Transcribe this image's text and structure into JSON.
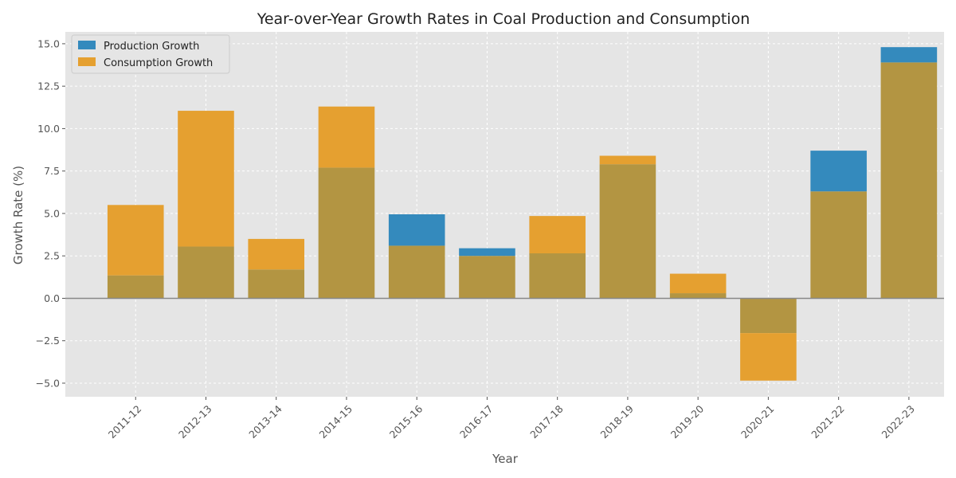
{
  "chart_data": {
    "type": "bar",
    "title": "Year-over-Year Growth Rates in Coal Production and Consumption",
    "xlabel": "Year",
    "ylabel": "Growth Rate (%)",
    "categories": [
      "2011-12",
      "2012-13",
      "2013-14",
      "2014-15",
      "2015-16",
      "2016-17",
      "2017-18",
      "2018-19",
      "2019-20",
      "2020-21",
      "2021-22",
      "2022-23"
    ],
    "series": [
      {
        "name": "Production Growth",
        "color": "#348ABD",
        "values": [
          1.35,
          3.05,
          1.7,
          7.7,
          4.95,
          2.95,
          2.65,
          7.9,
          0.3,
          -2.05,
          8.7,
          14.8
        ]
      },
      {
        "name": "Consumption Growth",
        "color": "#E5A030",
        "values": [
          5.5,
          11.05,
          3.5,
          11.3,
          3.1,
          2.5,
          4.85,
          8.4,
          1.45,
          -4.85,
          6.3,
          13.9
        ]
      }
    ],
    "ylim": [
      -5.8,
      15.7
    ],
    "yticks": [
      -5.0,
      -2.5,
      0.0,
      2.5,
      5.0,
      7.5,
      10.0,
      12.5,
      15.0
    ],
    "ytick_labels": [
      "−5.0",
      "−2.5",
      "0.0",
      "2.5",
      "5.0",
      "7.5",
      "10.0",
      "12.5",
      "15.0"
    ],
    "grid": true,
    "legend_position": "top-left",
    "overlap_color": "#B39542",
    "background_color": "#E5E5E5"
  }
}
